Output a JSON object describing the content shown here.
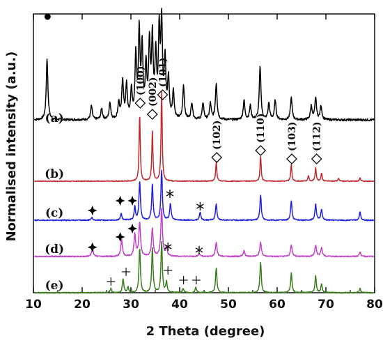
{
  "chart_data": {
    "type": "line",
    "xlabel": "2 Theta (degree)",
    "ylabel": "Normalised intensity (a.u.)",
    "xlim": [
      10,
      80
    ],
    "x_ticks": [
      "10",
      "20",
      "30",
      "40",
      "50",
      "60",
      "70",
      "80"
    ],
    "grid": false,
    "series": [
      {
        "name": "(a)",
        "color": "#000000",
        "offset": 0.6,
        "noise": 0.004,
        "base": 0.02,
        "width": 0.2,
        "peaks": [
          [
            12.8,
            0.22
          ],
          [
            21.9,
            0.05
          ],
          [
            24.0,
            0.04
          ],
          [
            25.7,
            0.06
          ],
          [
            27.5,
            0.06
          ],
          [
            28.3,
            0.14
          ],
          [
            29.1,
            0.12
          ],
          [
            30.1,
            0.1
          ],
          [
            31.0,
            0.22
          ],
          [
            31.7,
            0.3
          ],
          [
            32.3,
            0.25
          ],
          [
            33.1,
            0.18
          ],
          [
            33.8,
            0.26
          ],
          [
            34.4,
            0.28
          ],
          [
            35.1,
            0.22
          ],
          [
            35.8,
            0.3
          ],
          [
            36.3,
            0.33
          ],
          [
            37.0,
            0.2
          ],
          [
            37.7,
            0.14
          ],
          [
            38.7,
            0.1
          ],
          [
            40.8,
            0.12
          ],
          [
            42.5,
            0.06
          ],
          [
            44.8,
            0.06
          ],
          [
            46.3,
            0.06
          ],
          [
            47.5,
            0.13
          ],
          [
            53.2,
            0.07
          ],
          [
            54.5,
            0.05
          ],
          [
            56.5,
            0.19
          ],
          [
            58.3,
            0.06
          ],
          [
            59.6,
            0.07
          ],
          [
            62.9,
            0.08
          ],
          [
            67.0,
            0.05
          ],
          [
            67.9,
            0.08
          ],
          [
            69.0,
            0.05
          ]
        ]
      },
      {
        "name": "(b)",
        "color": "#c0282d",
        "offset": 0.4,
        "noise": 0.0015,
        "base": 0.0,
        "width": 0.14,
        "peaks": [
          [
            31.8,
            0.24
          ],
          [
            34.4,
            0.18
          ],
          [
            36.3,
            0.32
          ],
          [
            47.5,
            0.07
          ],
          [
            56.6,
            0.09
          ],
          [
            62.9,
            0.06
          ],
          [
            66.4,
            0.02
          ],
          [
            67.9,
            0.05
          ],
          [
            69.1,
            0.03
          ],
          [
            72.6,
            0.01
          ],
          [
            77.0,
            0.012
          ]
        ]
      },
      {
        "name": "(c)",
        "color": "#2020e0",
        "offset": 0.26,
        "noise": 0.002,
        "base": 0.0,
        "width": 0.17,
        "peaks": [
          [
            22.0,
            0.01
          ],
          [
            28.0,
            0.025
          ],
          [
            30.8,
            0.05
          ],
          [
            31.8,
            0.14
          ],
          [
            34.4,
            0.13
          ],
          [
            36.3,
            0.18
          ],
          [
            38.1,
            0.06
          ],
          [
            44.2,
            0.03
          ],
          [
            47.5,
            0.06
          ],
          [
            56.6,
            0.09
          ],
          [
            62.9,
            0.07
          ],
          [
            67.9,
            0.06
          ],
          [
            69.1,
            0.04
          ],
          [
            77.0,
            0.03
          ]
        ]
      },
      {
        "name": "(d)",
        "color": "#c040c8",
        "offset": 0.13,
        "noise": 0.002,
        "base": 0.0,
        "width": 0.2,
        "peaks": [
          [
            22.1,
            0.03
          ],
          [
            28.1,
            0.06
          ],
          [
            30.8,
            0.08
          ],
          [
            31.8,
            0.12
          ],
          [
            34.4,
            0.1
          ],
          [
            36.3,
            0.17
          ],
          [
            37.3,
            0.03
          ],
          [
            44.0,
            0.01
          ],
          [
            47.5,
            0.05
          ],
          [
            53.2,
            0.02
          ],
          [
            56.6,
            0.05
          ],
          [
            62.9,
            0.04
          ],
          [
            67.9,
            0.04
          ],
          [
            69.1,
            0.03
          ],
          [
            77.0,
            0.015
          ]
        ]
      },
      {
        "name": "(e)",
        "color": "#3a7d1e",
        "offset": 0.0,
        "noise": 0.002,
        "base": 0.0,
        "width": 0.17,
        "peaks": [
          [
            25.9,
            0.015
          ],
          [
            28.4,
            0.05
          ],
          [
            29.4,
            0.02
          ],
          [
            31.8,
            0.16
          ],
          [
            34.4,
            0.16
          ],
          [
            36.3,
            0.18
          ],
          [
            37.3,
            0.04
          ],
          [
            40.7,
            0.015
          ],
          [
            43.3,
            0.02
          ],
          [
            47.5,
            0.09
          ],
          [
            56.6,
            0.11
          ],
          [
            62.9,
            0.07
          ],
          [
            67.9,
            0.06
          ],
          [
            69.1,
            0.03
          ],
          [
            77.0,
            0.015
          ]
        ]
      }
    ],
    "marker_filled_circle": {
      "x": 12.9,
      "y": 0.99
    },
    "hkl_annotations": [
      {
        "x": 31.9,
        "y": 0.68,
        "label": "(100)"
      },
      {
        "x": 34.4,
        "y": 0.64,
        "label": "(002)"
      },
      {
        "x": 36.5,
        "y": 0.71,
        "label": "(101)"
      },
      {
        "x": 47.6,
        "y": 0.485,
        "label": "(102)"
      },
      {
        "x": 56.6,
        "y": 0.51,
        "label": "(110)"
      },
      {
        "x": 63.0,
        "y": 0.48,
        "label": "(103)"
      },
      {
        "x": 68.1,
        "y": 0.48,
        "label": "(112)"
      }
    ],
    "marker_star4": [
      {
        "x": 22.1,
        "y": 0.295
      },
      {
        "x": 27.8,
        "y": 0.33
      },
      {
        "x": 30.3,
        "y": 0.33
      },
      {
        "x": 22.1,
        "y": 0.163
      },
      {
        "x": 27.8,
        "y": 0.2
      },
      {
        "x": 30.3,
        "y": 0.23
      }
    ],
    "marker_asterisk": [
      {
        "x": 38.0,
        "y": 0.355
      },
      {
        "x": 44.2,
        "y": 0.31
      },
      {
        "x": 37.6,
        "y": 0.165
      },
      {
        "x": 44.0,
        "y": 0.153
      }
    ],
    "marker_plus": [
      {
        "x": 25.9,
        "y": 0.04
      },
      {
        "x": 29.0,
        "y": 0.075
      },
      {
        "x": 37.6,
        "y": 0.08
      },
      {
        "x": 40.8,
        "y": 0.045
      },
      {
        "x": 43.4,
        "y": 0.045
      }
    ]
  }
}
